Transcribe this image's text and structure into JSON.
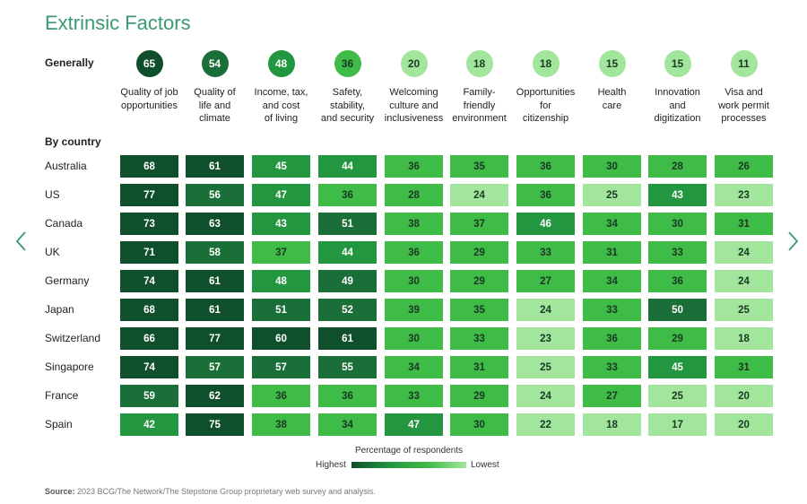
{
  "title": "Extrinsic Factors",
  "generally_label": "Generally",
  "by_country_label": "By country",
  "chart_data": {
    "type": "heatmap",
    "factors": [
      "Quality of job opportunities",
      "Quality of life and climate",
      "Income, tax, and cost of living",
      "Safety, stability, and security",
      "Welcoming culture and inclusiveness",
      "Family-friendly environment",
      "Opportunities for citizenship",
      "Health care",
      "Innovation and digitization",
      "Visa and work permit processes"
    ],
    "factor_label_lines": [
      [
        "Quality of job",
        "opportunities"
      ],
      [
        "Quality of",
        "life and",
        "climate"
      ],
      [
        "Income, tax,",
        "and cost",
        "of living"
      ],
      [
        "Safety,",
        "stability,",
        "and security"
      ],
      [
        "Welcoming",
        "culture and",
        "inclusiveness"
      ],
      [
        "Family-",
        "friendly",
        "environment"
      ],
      [
        "Opportunities",
        "for",
        "citizenship"
      ],
      [
        "Health",
        "care"
      ],
      [
        "Innovation",
        "and",
        "digitization"
      ],
      [
        "Visa and",
        "work permit",
        "processes"
      ]
    ],
    "generally": [
      65,
      54,
      48,
      36,
      20,
      18,
      18,
      15,
      15,
      11
    ],
    "countries": [
      "Australia",
      "US",
      "Canada",
      "UK",
      "Germany",
      "Japan",
      "Switzerland",
      "Singapore",
      "France",
      "Spain"
    ],
    "values": [
      [
        68,
        61,
        45,
        44,
        36,
        35,
        36,
        30,
        28,
        26
      ],
      [
        77,
        56,
        47,
        36,
        28,
        24,
        36,
        25,
        43,
        23
      ],
      [
        73,
        63,
        43,
        51,
        38,
        37,
        46,
        34,
        30,
        31
      ],
      [
        71,
        58,
        37,
        44,
        36,
        29,
        33,
        31,
        33,
        24
      ],
      [
        74,
        61,
        48,
        49,
        30,
        29,
        27,
        34,
        36,
        24
      ],
      [
        68,
        61,
        51,
        52,
        39,
        35,
        24,
        33,
        50,
        25
      ],
      [
        66,
        77,
        60,
        61,
        30,
        33,
        23,
        36,
        29,
        18
      ],
      [
        74,
        57,
        57,
        55,
        34,
        31,
        25,
        33,
        45,
        31
      ],
      [
        59,
        62,
        36,
        36,
        33,
        29,
        24,
        27,
        25,
        20
      ],
      [
        42,
        75,
        38,
        34,
        47,
        30,
        22,
        18,
        17,
        20
      ]
    ],
    "legend": {
      "title": "Percentage of respondents",
      "high": "Highest",
      "low": "Lowest"
    },
    "colors": [
      "#0f4f2c",
      "#1a6e37",
      "#239640",
      "#3fbb47",
      "#a2e59c"
    ]
  },
  "source": {
    "label": "Source:",
    "text": "2023 BCG/The Network/The Stepstone Group proprietary web survey and analysis."
  },
  "nav": {
    "prev_icon": "chevron-left-icon",
    "next_icon": "chevron-right-icon",
    "color": "#3a9a72"
  }
}
